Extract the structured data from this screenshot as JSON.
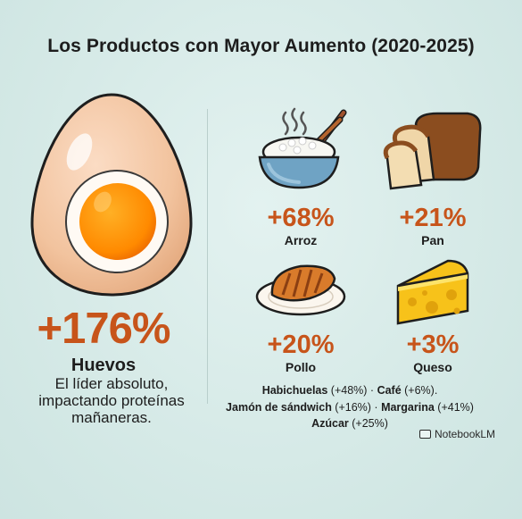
{
  "title": "Los Productos con Mayor Aumento (2020-2025)",
  "hero": {
    "percent": "+176%",
    "name": "Huevos",
    "description": "El líder absoluto, impactando proteínas mañaneras."
  },
  "items": [
    {
      "percent": "+68%",
      "name": "Arroz",
      "icon": "rice-bowl-icon"
    },
    {
      "percent": "+21%",
      "name": "Pan",
      "icon": "bread-icon"
    },
    {
      "percent": "+20%",
      "name": "Pollo",
      "icon": "chicken-plate-icon"
    },
    {
      "percent": "+3%",
      "name": "Queso",
      "icon": "cheese-icon"
    }
  ],
  "footer": {
    "l1_a": "Habichuelas",
    "l1_b": " (+48%) · ",
    "l1_c": "Café",
    "l1_d": " (+6%).",
    "l2_a": "Jamón de sándwich",
    "l2_b": " (+16%) · ",
    "l2_c": "Margarina",
    "l2_d": " (+41%)",
    "l3_a": "Azúcar",
    "l3_b": " (+25%)"
  },
  "brand": "NotebookLM",
  "colors": {
    "accent": "#c7541a",
    "background": "#d7ebe8"
  }
}
